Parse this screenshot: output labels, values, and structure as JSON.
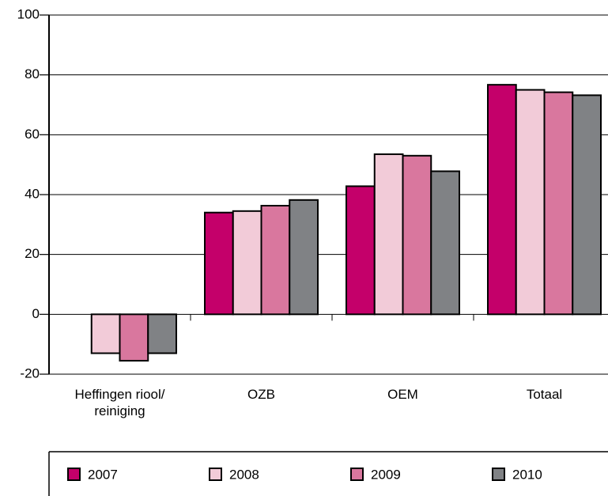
{
  "chart_data": {
    "type": "bar",
    "categories": [
      "Heffingen riool/\nreiniging",
      "OZB",
      "OEM",
      "Totaal"
    ],
    "series": [
      {
        "name": "2007",
        "color": "#c4006a",
        "values": [
          0,
          34,
          42.8,
          76.7
        ]
      },
      {
        "name": "2008",
        "color": "#f2cbd8",
        "values": [
          -13,
          34.5,
          53.5,
          75
        ]
      },
      {
        "name": "2009",
        "color": "#d9779e",
        "values": [
          -15.5,
          36.3,
          53,
          74.2
        ]
      },
      {
        "name": "2010",
        "color": "#808285",
        "values": [
          -13,
          38.2,
          47.8,
          73.2
        ]
      }
    ],
    "ylim": [
      -20,
      100
    ],
    "yticks": [
      -20,
      0,
      20,
      40,
      60,
      80,
      100
    ],
    "grid": true,
    "legend": "bottom"
  }
}
